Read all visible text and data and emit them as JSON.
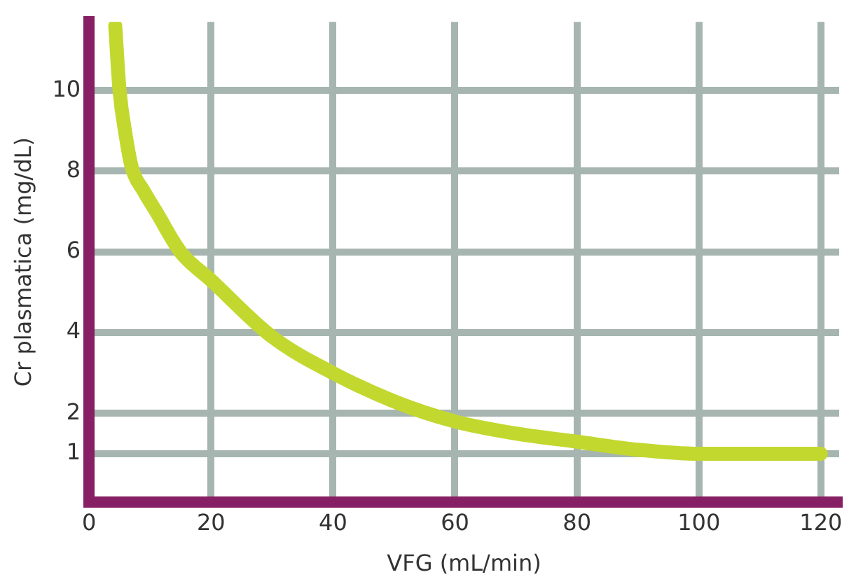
{
  "chart_data": {
    "type": "line",
    "xlabel": "VFG (mL/min)",
    "ylabel": "Cr plasmatica (mg/dL)",
    "x": [
      4.3,
      5,
      6,
      7,
      9,
      11,
      15,
      20,
      30,
      40,
      50,
      60,
      70,
      80,
      90,
      100,
      110,
      120
    ],
    "series": [
      {
        "color": "#c2d82e",
        "values": [
          11.6,
          10,
          8.9,
          8.1,
          7.5,
          7,
          6,
          5.3,
          3.9,
          3,
          2.3,
          1.8,
          1.5,
          1.3,
          1.1,
          1.0,
          1.0,
          1.0
        ]
      }
    ],
    "xlim": [
      0,
      123
    ],
    "ylim": [
      -0.2,
      11.7
    ],
    "xticks": [
      0,
      20,
      40,
      60,
      80,
      100,
      120
    ],
    "yticks": [
      1,
      2,
      4,
      6,
      8,
      10
    ],
    "grid": true,
    "legend": false,
    "marker": "none",
    "line_style": "solid"
  }
}
